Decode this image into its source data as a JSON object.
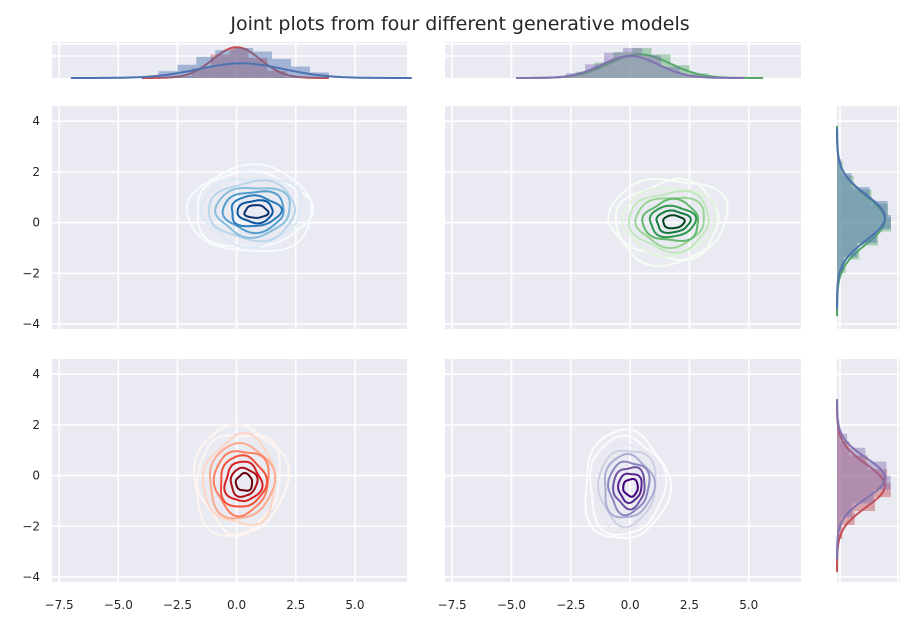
{
  "chart_data": {
    "type": "contour",
    "title": "Joint plots from four different generative models",
    "style": "seaborn-darkgrid",
    "x_ticks": [
      "−7.5",
      "−5.0",
      "−2.5",
      "0.0",
      "2.5",
      "5.0"
    ],
    "y_ticks": [
      "4",
      "2",
      "0",
      "−2",
      "−4"
    ],
    "xlim": [
      -7.8,
      7.2
    ],
    "ylim": [
      -4.2,
      4.6
    ],
    "grid": true,
    "panels": [
      {
        "id": "top-left",
        "row": 0,
        "col": 0,
        "colormap": "Blues",
        "colors": [
          "#f7fbff",
          "#dbe9f6",
          "#bad6eb",
          "#89bedc",
          "#539ecd",
          "#2b7bba",
          "#0b559f",
          "#08306b"
        ],
        "center": [
          0.6,
          0.5
        ],
        "spread": [
          2.6,
          1.0
        ],
        "levels": 9
      },
      {
        "id": "top-right",
        "row": 0,
        "col": 1,
        "colormap": "Greens",
        "colors": [
          "#f7fcf5",
          "#e0f3db",
          "#c3e7bc",
          "#99d595",
          "#63b86e",
          "#2f974e",
          "#137b3c",
          "#00441b"
        ],
        "center": [
          1.6,
          0.1
        ],
        "spread": [
          2.4,
          1.0
        ],
        "levels": 9
      },
      {
        "id": "bottom-left",
        "row": 1,
        "col": 0,
        "colormap": "Reds",
        "colors": [
          "#fff5f0",
          "#fdd5c4",
          "#fcaa8e",
          "#fc8161",
          "#f44f39",
          "#d52221",
          "#aa1016",
          "#67000d"
        ],
        "center": [
          0.1,
          -0.2
        ],
        "spread": [
          1.9,
          1.3
        ],
        "levels": 9
      },
      {
        "id": "bottom-right",
        "row": 1,
        "col": 1,
        "colormap": "Purples",
        "colors": [
          "#fcfbfd",
          "#e9e8f2",
          "#cecfe5",
          "#acabd0",
          "#8c87bf",
          "#6f53a2",
          "#55258e",
          "#3f007d"
        ],
        "center": [
          -0.2,
          -0.4
        ],
        "spread": [
          1.7,
          1.3
        ],
        "levels": 9
      }
    ],
    "top_marginals": [
      {
        "col": 0,
        "series": [
          {
            "color": "#c44e52",
            "mean": 0.0,
            "sd": 1.0
          },
          {
            "color": "#4c72b0",
            "mean": 0.2,
            "sd": 1.8
          }
        ]
      },
      {
        "col": 1,
        "series": [
          {
            "color": "#55a868",
            "mean": 0.4,
            "sd": 1.3
          },
          {
            "color": "#8172b2",
            "mean": 0.0,
            "sd": 1.2
          }
        ]
      }
    ],
    "right_marginals": [
      {
        "row": 0,
        "series": [
          {
            "color": "#55a868",
            "mean": 0.1,
            "sd": 0.95
          },
          {
            "color": "#4c72b0",
            "mean": 0.2,
            "sd": 0.9
          }
        ]
      },
      {
        "row": 1,
        "series": [
          {
            "color": "#c44e52",
            "mean": -0.4,
            "sd": 0.85
          },
          {
            "color": "#8172b2",
            "mean": -0.1,
            "sd": 0.8
          }
        ]
      }
    ]
  }
}
